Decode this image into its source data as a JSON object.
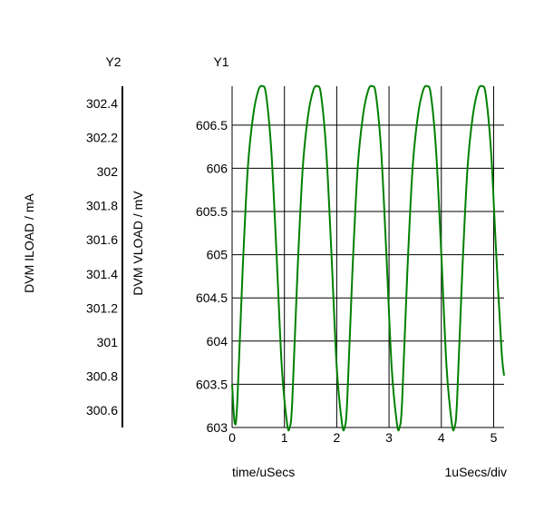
{
  "chart_data": {
    "type": "line",
    "y1_title": "Y1",
    "y2_title": "Y2",
    "ylabel_y1": "DVM VLOAD / mV",
    "ylabel_y2": "DVM ILOAD / mA",
    "xlabel": "time/uSecs",
    "x_scale_note": "1uSecs/div",
    "x_ticks": [
      "0",
      "1",
      "2",
      "3",
      "4",
      "5"
    ],
    "x_tick_values": [
      0,
      1,
      2,
      3,
      4,
      5
    ],
    "y1_ticks": [
      "603",
      "603.5",
      "604",
      "604.5",
      "605",
      "605.5",
      "606",
      "606.5"
    ],
    "y1_tick_values": [
      603,
      603.5,
      604,
      604.5,
      605,
      605.5,
      606,
      606.5
    ],
    "y2_ticks": [
      "300.6",
      "300.8",
      "301",
      "301.2",
      "301.4",
      "301.6",
      "301.8",
      "302",
      "302.2",
      "302.4"
    ],
    "y2_tick_values": [
      300.6,
      300.8,
      301,
      301.2,
      301.4,
      301.6,
      301.8,
      302,
      302.2,
      302.4
    ],
    "xlim": [
      0,
      5.2
    ],
    "y1lim": [
      603,
      606.95
    ],
    "y2lim": [
      300.5,
      302.5
    ],
    "grid": true,
    "series": [
      {
        "axis": "y1",
        "color": "#008000",
        "x": [
          0,
          0.05,
          0.1,
          0.2,
          0.3,
          0.4,
          0.5,
          0.58,
          0.65,
          0.75,
          0.85,
          0.95,
          1.05,
          1.1,
          1.15,
          1.25,
          1.35,
          1.45,
          1.55,
          1.63,
          1.7,
          1.8,
          1.9,
          2.0,
          2.1,
          2.15,
          2.2,
          2.3,
          2.4,
          2.5,
          2.6,
          2.68,
          2.75,
          2.85,
          2.95,
          3.05,
          3.15,
          3.2,
          3.25,
          3.35,
          3.45,
          3.55,
          3.65,
          3.73,
          3.8,
          3.9,
          4.0,
          4.1,
          4.2,
          4.25,
          4.3,
          4.4,
          4.5,
          4.6,
          4.7,
          4.78,
          4.85,
          4.95,
          5.05,
          5.15,
          5.2
        ],
        "y": [
          603.5,
          603.05,
          603.3,
          604.8,
          606.0,
          606.6,
          606.9,
          606.95,
          606.85,
          606.2,
          605.0,
          603.7,
          603.05,
          603.0,
          603.3,
          604.8,
          606.0,
          606.6,
          606.9,
          606.95,
          606.85,
          606.2,
          605.0,
          603.7,
          603.05,
          603.0,
          603.3,
          604.8,
          606.0,
          606.6,
          606.9,
          606.95,
          606.85,
          606.2,
          605.0,
          603.7,
          603.05,
          603.0,
          603.3,
          604.8,
          606.0,
          606.6,
          606.9,
          606.95,
          606.85,
          606.2,
          605.0,
          603.7,
          603.05,
          603.0,
          603.3,
          604.8,
          606.0,
          606.6,
          606.9,
          606.95,
          606.85,
          606.2,
          605.0,
          603.9,
          603.6
        ]
      }
    ]
  }
}
